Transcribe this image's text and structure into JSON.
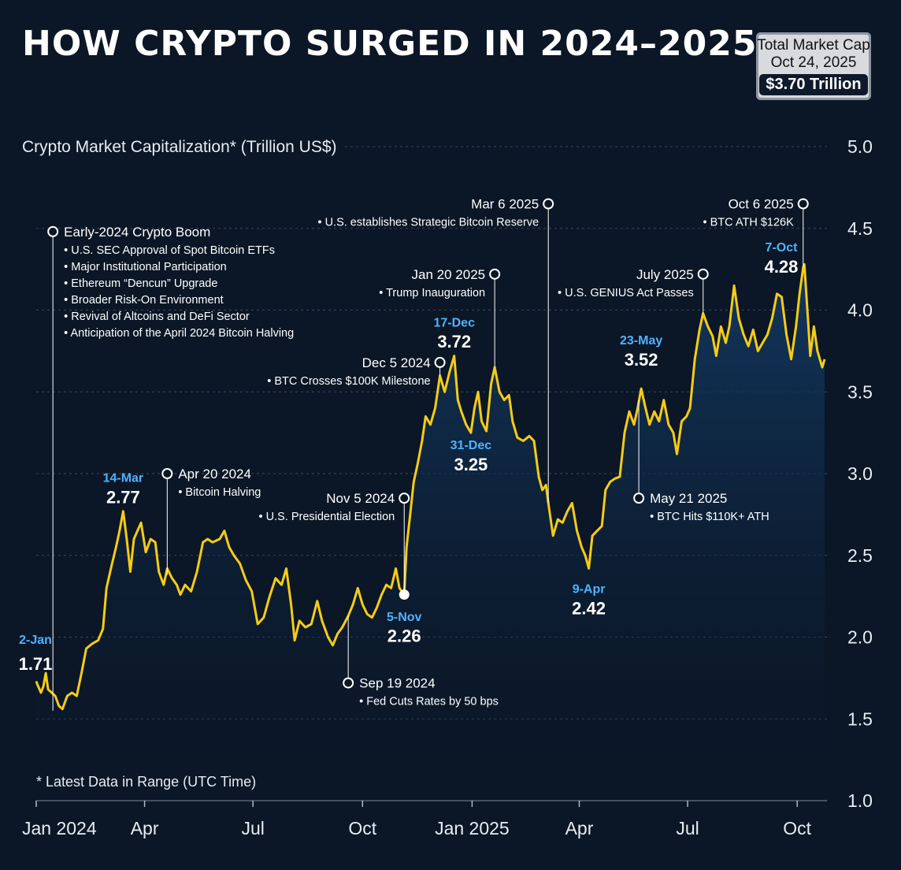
{
  "title": "HOW CRYPTO SURGED IN 2024–2025",
  "market_cap_box": {
    "line1": "Total Market Cap",
    "line2": "Oct 24, 2025",
    "value": "$3.70 Trillion"
  },
  "footnote": "* Latest Data in Range (UTC Time)",
  "colors": {
    "background": "#0b1626",
    "line": "#f5cc16",
    "date_label": "#4fb3ff",
    "area_top": "#123a63"
  },
  "chart_data": {
    "type": "area",
    "ylabel": "Crypto Market Capitalization* (Trillion US$)",
    "ylim": [
      1.0,
      5.0
    ],
    "yticks": [
      "1.0",
      "1.5",
      "2.0",
      "2.5",
      "3.0",
      "3.5",
      "4.0",
      "4.5",
      "5.0"
    ],
    "xlim": [
      "2024-01-01",
      "2025-10-26"
    ],
    "xticks": [
      {
        "date": "2024-01-01",
        "label": "Jan 2024"
      },
      {
        "date": "2024-04-01",
        "label": "Apr"
      },
      {
        "date": "2024-07-01",
        "label": "Jul"
      },
      {
        "date": "2024-10-01",
        "label": "Oct"
      },
      {
        "date": "2025-01-01",
        "label": "Jan 2025"
      },
      {
        "date": "2025-04-01",
        "label": "Apr"
      },
      {
        "date": "2025-07-01",
        "label": "Jul"
      },
      {
        "date": "2025-10-01",
        "label": "Oct"
      }
    ],
    "series": [
      {
        "name": "",
        "points": [
          [
            "2024-01-01",
            1.73
          ],
          [
            "2024-01-02",
            1.71
          ],
          [
            "2024-01-05",
            1.66
          ],
          [
            "2024-01-07",
            1.7
          ],
          [
            "2024-01-09",
            1.78
          ],
          [
            "2024-01-11",
            1.68
          ],
          [
            "2024-01-14",
            1.66
          ],
          [
            "2024-01-17",
            1.64
          ],
          [
            "2024-01-20",
            1.58
          ],
          [
            "2024-01-23",
            1.56
          ],
          [
            "2024-01-27",
            1.64
          ],
          [
            "2024-01-31",
            1.66
          ],
          [
            "2024-02-04",
            1.64
          ],
          [
            "2024-02-08",
            1.78
          ],
          [
            "2024-02-12",
            1.93
          ],
          [
            "2024-02-17",
            1.96
          ],
          [
            "2024-02-22",
            1.98
          ],
          [
            "2024-02-26",
            2.05
          ],
          [
            "2024-02-29",
            2.3
          ],
          [
            "2024-03-04",
            2.43
          ],
          [
            "2024-03-08",
            2.55
          ],
          [
            "2024-03-11",
            2.65
          ],
          [
            "2024-03-14",
            2.77
          ],
          [
            "2024-03-17",
            2.6
          ],
          [
            "2024-03-20",
            2.4
          ],
          [
            "2024-03-23",
            2.6
          ],
          [
            "2024-03-26",
            2.65
          ],
          [
            "2024-03-29",
            2.7
          ],
          [
            "2024-04-02",
            2.52
          ],
          [
            "2024-04-06",
            2.6
          ],
          [
            "2024-04-10",
            2.58
          ],
          [
            "2024-04-13",
            2.4
          ],
          [
            "2024-04-17",
            2.32
          ],
          [
            "2024-04-20",
            2.42
          ],
          [
            "2024-04-24",
            2.36
          ],
          [
            "2024-04-28",
            2.32
          ],
          [
            "2024-05-01",
            2.26
          ],
          [
            "2024-05-05",
            2.32
          ],
          [
            "2024-05-10",
            2.28
          ],
          [
            "2024-05-15",
            2.4
          ],
          [
            "2024-05-20",
            2.58
          ],
          [
            "2024-05-24",
            2.6
          ],
          [
            "2024-05-28",
            2.58
          ],
          [
            "2024-06-03",
            2.6
          ],
          [
            "2024-06-07",
            2.65
          ],
          [
            "2024-06-11",
            2.55
          ],
          [
            "2024-06-15",
            2.5
          ],
          [
            "2024-06-20",
            2.45
          ],
          [
            "2024-06-25",
            2.35
          ],
          [
            "2024-06-30",
            2.28
          ],
          [
            "2024-07-05",
            2.08
          ],
          [
            "2024-07-10",
            2.12
          ],
          [
            "2024-07-15",
            2.25
          ],
          [
            "2024-07-20",
            2.36
          ],
          [
            "2024-07-25",
            2.32
          ],
          [
            "2024-07-29",
            2.42
          ],
          [
            "2024-08-02",
            2.2
          ],
          [
            "2024-08-05",
            1.98
          ],
          [
            "2024-08-09",
            2.1
          ],
          [
            "2024-08-14",
            2.06
          ],
          [
            "2024-08-19",
            2.08
          ],
          [
            "2024-08-24",
            2.22
          ],
          [
            "2024-08-28",
            2.1
          ],
          [
            "2024-09-02",
            2.0
          ],
          [
            "2024-09-06",
            1.95
          ],
          [
            "2024-09-10",
            2.02
          ],
          [
            "2024-09-14",
            2.06
          ],
          [
            "2024-09-19",
            2.13
          ],
          [
            "2024-09-23",
            2.2
          ],
          [
            "2024-09-27",
            2.3
          ],
          [
            "2024-10-01",
            2.2
          ],
          [
            "2024-10-05",
            2.14
          ],
          [
            "2024-10-09",
            2.12
          ],
          [
            "2024-10-13",
            2.18
          ],
          [
            "2024-10-17",
            2.26
          ],
          [
            "2024-10-21",
            2.32
          ],
          [
            "2024-10-25",
            2.3
          ],
          [
            "2024-10-29",
            2.42
          ],
          [
            "2024-11-01",
            2.3
          ],
          [
            "2024-11-05",
            2.26
          ],
          [
            "2024-11-07",
            2.55
          ],
          [
            "2024-11-10",
            2.75
          ],
          [
            "2024-11-13",
            2.95
          ],
          [
            "2024-11-16",
            3.05
          ],
          [
            "2024-11-20",
            3.2
          ],
          [
            "2024-11-23",
            3.35
          ],
          [
            "2024-11-27",
            3.3
          ],
          [
            "2024-12-01",
            3.4
          ],
          [
            "2024-12-05",
            3.6
          ],
          [
            "2024-12-09",
            3.5
          ],
          [
            "2024-12-13",
            3.62
          ],
          [
            "2024-12-17",
            3.72
          ],
          [
            "2024-12-20",
            3.45
          ],
          [
            "2024-12-23",
            3.38
          ],
          [
            "2024-12-27",
            3.3
          ],
          [
            "2024-12-31",
            3.25
          ],
          [
            "2025-01-03",
            3.4
          ],
          [
            "2025-01-06",
            3.5
          ],
          [
            "2025-01-09",
            3.32
          ],
          [
            "2025-01-13",
            3.26
          ],
          [
            "2025-01-17",
            3.55
          ],
          [
            "2025-01-20",
            3.65
          ],
          [
            "2025-01-24",
            3.5
          ],
          [
            "2025-01-28",
            3.45
          ],
          [
            "2025-02-01",
            3.48
          ],
          [
            "2025-02-04",
            3.32
          ],
          [
            "2025-02-08",
            3.22
          ],
          [
            "2025-02-13",
            3.2
          ],
          [
            "2025-02-18",
            3.23
          ],
          [
            "2025-02-22",
            3.2
          ],
          [
            "2025-02-26",
            2.98
          ],
          [
            "2025-03-01",
            2.9
          ],
          [
            "2025-03-04",
            2.93
          ],
          [
            "2025-03-06",
            2.82
          ],
          [
            "2025-03-10",
            2.62
          ],
          [
            "2025-03-14",
            2.72
          ],
          [
            "2025-03-18",
            2.7
          ],
          [
            "2025-03-22",
            2.77
          ],
          [
            "2025-03-26",
            2.82
          ],
          [
            "2025-03-30",
            2.65
          ],
          [
            "2025-04-03",
            2.55
          ],
          [
            "2025-04-06",
            2.5
          ],
          [
            "2025-04-09",
            2.42
          ],
          [
            "2025-04-12",
            2.62
          ],
          [
            "2025-04-16",
            2.65
          ],
          [
            "2025-04-20",
            2.68
          ],
          [
            "2025-04-23",
            2.9
          ],
          [
            "2025-04-27",
            2.95
          ],
          [
            "2025-05-01",
            2.97
          ],
          [
            "2025-05-05",
            2.98
          ],
          [
            "2025-05-09",
            3.25
          ],
          [
            "2025-05-13",
            3.38
          ],
          [
            "2025-05-17",
            3.3
          ],
          [
            "2025-05-20",
            3.4
          ],
          [
            "2025-05-23",
            3.52
          ],
          [
            "2025-05-26",
            3.42
          ],
          [
            "2025-05-30",
            3.3
          ],
          [
            "2025-06-03",
            3.38
          ],
          [
            "2025-06-07",
            3.32
          ],
          [
            "2025-06-11",
            3.45
          ],
          [
            "2025-06-15",
            3.3
          ],
          [
            "2025-06-19",
            3.25
          ],
          [
            "2025-06-22",
            3.12
          ],
          [
            "2025-06-26",
            3.32
          ],
          [
            "2025-06-30",
            3.35
          ],
          [
            "2025-07-03",
            3.4
          ],
          [
            "2025-07-07",
            3.7
          ],
          [
            "2025-07-11",
            3.88
          ],
          [
            "2025-07-14",
            3.98
          ],
          [
            "2025-07-18",
            3.9
          ],
          [
            "2025-07-22",
            3.84
          ],
          [
            "2025-07-25",
            3.72
          ],
          [
            "2025-07-29",
            3.9
          ],
          [
            "2025-08-02",
            3.8
          ],
          [
            "2025-08-05",
            3.9
          ],
          [
            "2025-08-09",
            4.15
          ],
          [
            "2025-08-13",
            3.95
          ],
          [
            "2025-08-17",
            3.85
          ],
          [
            "2025-08-21",
            3.78
          ],
          [
            "2025-08-25",
            3.88
          ],
          [
            "2025-08-29",
            3.75
          ],
          [
            "2025-09-02",
            3.8
          ],
          [
            "2025-09-06",
            3.85
          ],
          [
            "2025-09-10",
            3.95
          ],
          [
            "2025-09-14",
            4.1
          ],
          [
            "2025-09-18",
            4.08
          ],
          [
            "2025-09-22",
            3.85
          ],
          [
            "2025-09-26",
            3.7
          ],
          [
            "2025-09-30",
            3.9
          ],
          [
            "2025-10-03",
            4.1
          ],
          [
            "2025-10-06",
            4.26
          ],
          [
            "2025-10-07",
            4.28
          ],
          [
            "2025-10-10",
            3.95
          ],
          [
            "2025-10-12",
            3.72
          ],
          [
            "2025-10-15",
            3.9
          ],
          [
            "2025-10-18",
            3.75
          ],
          [
            "2025-10-22",
            3.65
          ],
          [
            "2025-10-24",
            3.7
          ]
        ]
      }
    ],
    "point_labels": [
      {
        "date": "2024-01-02",
        "value": 1.71,
        "date_label": "2-Jan",
        "value_label": "1.71"
      },
      {
        "date": "2024-03-14",
        "value": 2.77,
        "date_label": "14-Mar",
        "value_label": "2.77"
      },
      {
        "date": "2024-11-05",
        "value": 2.26,
        "date_label": "5-Nov",
        "value_label": "2.26"
      },
      {
        "date": "2024-12-17",
        "value": 3.72,
        "date_label": "17-Dec",
        "value_label": "3.72"
      },
      {
        "date": "2024-12-31",
        "value": 3.25,
        "date_label": "31-Dec",
        "value_label": "3.25"
      },
      {
        "date": "2025-04-09",
        "value": 2.42,
        "date_label": "9-Apr",
        "value_label": "2.42"
      },
      {
        "date": "2025-05-23",
        "value": 3.52,
        "date_label": "23-May",
        "value_label": "3.52"
      },
      {
        "date": "2025-10-07",
        "value": 4.28,
        "date_label": "7-Oct",
        "value_label": "4.28"
      }
    ],
    "annotations": [
      {
        "date": "2024-01-15",
        "anchor_value": 1.55,
        "label_value": 4.48,
        "title": "Early-2024 Crypto Boom",
        "bullets": [
          "U.S. SEC Approval of Spot Bitcoin ETFs",
          "Major Institutional Participation",
          "Ethereum “Dencun” Upgrade",
          "Broader Risk-On Environment",
          "Revival of Altcoins and DeFi Sector",
          "Anticipation of the April 2024 Bitcoin Halving"
        ],
        "side": "right"
      },
      {
        "date": "2024-04-20",
        "anchor_value": 2.38,
        "label_value": 3.0,
        "title": "Apr 20 2024",
        "bullets": [
          "Bitcoin Halving"
        ],
        "side": "right"
      },
      {
        "date": "2024-09-19",
        "anchor_value": 2.13,
        "label_value": 1.72,
        "title": "Sep 19 2024",
        "bullets": [
          "Fed Cuts Rates by 50 bps"
        ],
        "side": "right"
      },
      {
        "date": "2024-11-05",
        "anchor_value": 2.26,
        "label_value": 2.85,
        "title": "Nov 5 2024",
        "bullets": [
          "U.S. Presidential Election"
        ],
        "side": "left"
      },
      {
        "date": "2024-12-05",
        "anchor_value": 3.6,
        "label_value": 3.68,
        "title": "Dec 5 2024",
        "bullets": [
          "BTC Crosses $100K Milestone"
        ],
        "side": "left"
      },
      {
        "date": "2025-01-20",
        "anchor_value": 3.65,
        "label_value": 4.22,
        "title": "Jan 20 2025",
        "bullets": [
          "Trump Inauguration"
        ],
        "side": "left"
      },
      {
        "date": "2025-03-06",
        "anchor_value": 2.82,
        "label_value": 4.65,
        "title": "Mar 6 2025",
        "bullets": [
          "U.S. establishes Strategic Bitcoin Reserve"
        ],
        "side": "left"
      },
      {
        "date": "2025-05-21",
        "anchor_value": 3.45,
        "label_value": 2.85,
        "title": "May 21 2025",
        "bullets": [
          "BTC Hits $110K+ ATH"
        ],
        "side": "right"
      },
      {
        "date": "2025-07-14",
        "anchor_value": 3.98,
        "label_value": 4.22,
        "title": "July 2025",
        "bullets": [
          "U.S. GENIUS Act Passes"
        ],
        "side": "left"
      },
      {
        "date": "2025-10-06",
        "anchor_value": 4.26,
        "label_value": 4.65,
        "title": "Oct 6 2025",
        "bullets": [
          "BTC ATH $126K"
        ],
        "side": "left"
      }
    ]
  }
}
